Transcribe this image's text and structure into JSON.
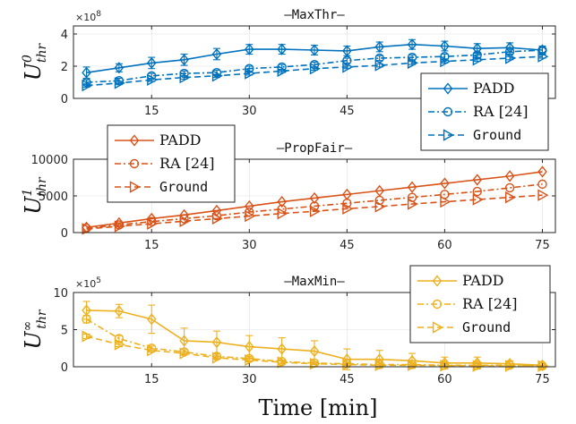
{
  "colors": {
    "MaxThr": "#0072BD",
    "PropFair": "#D95319",
    "MaxMin": "#EDB120"
  },
  "xlabel": "Time [min]",
  "chart_data": [
    {
      "id": "MaxThr",
      "type": "line",
      "title": "—MaxThr—",
      "ylabel": "U",
      "ylabel_sup": "0",
      "ylabel_sub": "thr",
      "exponent_label": "×10",
      "exponent_power": "8",
      "scale": 100000000,
      "xlim": [
        3,
        77
      ],
      "ylim": [
        0,
        4.5
      ],
      "xticks": [
        15,
        30,
        45,
        60,
        75
      ],
      "xticklabels": [
        "15",
        "30",
        "45",
        "60",
        "75"
      ],
      "show_xticklabels": [
        true,
        true,
        true,
        false,
        false
      ],
      "yticks": [
        0,
        2,
        4
      ],
      "yticklabels": [
        "0",
        "2",
        "4"
      ],
      "legend_position": "bottom-right",
      "x": [
        5,
        10,
        15,
        20,
        25,
        30,
        35,
        40,
        45,
        50,
        55,
        60,
        65,
        70,
        75
      ],
      "series": [
        {
          "name": "PADD",
          "linestyle": "solid",
          "marker": "diamond",
          "values": [
            1.6,
            1.9,
            2.2,
            2.4,
            2.75,
            3.05,
            3.05,
            3.0,
            2.95,
            3.2,
            3.35,
            3.25,
            3.1,
            3.15,
            3.0
          ],
          "errors": [
            0.35,
            0.25,
            0.35,
            0.35,
            0.35,
            0.3,
            0.3,
            0.3,
            0.3,
            0.3,
            0.3,
            0.3,
            0.3,
            0.3,
            0.25
          ]
        },
        {
          "name": "RA [24]",
          "linestyle": "dashdot",
          "marker": "circle",
          "values": [
            1.0,
            1.1,
            1.4,
            1.55,
            1.6,
            1.85,
            1.95,
            2.1,
            2.35,
            2.5,
            2.55,
            2.6,
            2.7,
            2.9,
            3.0
          ],
          "errors": [
            0.15,
            0.15,
            0.15,
            0.15,
            0.15,
            0.15,
            0.15,
            0.15,
            0.15,
            0.15,
            0.15,
            0.15,
            0.15,
            0.15,
            0.15
          ]
        },
        {
          "name": "Ground",
          "linestyle": "dashed",
          "marker": "triangle-right",
          "values": [
            0.8,
            0.95,
            1.15,
            1.3,
            1.4,
            1.55,
            1.7,
            1.85,
            1.95,
            2.05,
            2.2,
            2.3,
            2.4,
            2.5,
            2.6
          ],
          "errors": [
            0.1,
            0.1,
            0.1,
            0.1,
            0.1,
            0.1,
            0.1,
            0.1,
            0.1,
            0.1,
            0.1,
            0.1,
            0.1,
            0.1,
            0.1
          ]
        }
      ]
    },
    {
      "id": "PropFair",
      "type": "line",
      "title": "—PropFair—",
      "ylabel": "U",
      "ylabel_sup": "1",
      "ylabel_sub": "thr",
      "exponent_label": "",
      "exponent_power": "",
      "scale": 1,
      "xlim": [
        3,
        77
      ],
      "ylim": [
        0,
        10000
      ],
      "xticks": [
        15,
        30,
        45,
        60,
        75
      ],
      "xticklabels": [
        "15",
        "30",
        "45",
        "60",
        "75"
      ],
      "show_xticklabels": [
        true,
        true,
        true,
        true,
        true
      ],
      "yticks": [
        0,
        5000,
        10000
      ],
      "yticklabels": [
        "0",
        "5000",
        "10000"
      ],
      "legend_position": "top-left",
      "x": [
        5,
        10,
        15,
        20,
        25,
        30,
        35,
        40,
        45,
        50,
        55,
        60,
        65,
        70,
        75
      ],
      "series": [
        {
          "name": "PADD",
          "linestyle": "solid",
          "marker": "diamond",
          "values": [
            700,
            1300,
            1900,
            2400,
            3000,
            3600,
            4200,
            4700,
            5200,
            5700,
            6200,
            6700,
            7200,
            7700,
            8300
          ],
          "errors": [
            0,
            0,
            0,
            0,
            0,
            0,
            0,
            0,
            0,
            0,
            0,
            0,
            0,
            0,
            0
          ]
        },
        {
          "name": "RA [24]",
          "linestyle": "dashdot",
          "marker": "circle",
          "values": [
            600,
            1050,
            1500,
            1900,
            2300,
            2800,
            3200,
            3600,
            4000,
            4400,
            4800,
            5200,
            5600,
            6100,
            6600
          ],
          "errors": [
            0,
            0,
            0,
            0,
            0,
            0,
            0,
            0,
            0,
            0,
            0,
            0,
            0,
            0,
            0
          ]
        },
        {
          "name": "Ground",
          "linestyle": "dashed",
          "marker": "triangle-right",
          "values": [
            500,
            850,
            1200,
            1550,
            1900,
            2250,
            2600,
            2900,
            3250,
            3550,
            3900,
            4200,
            4500,
            4800,
            5100
          ],
          "errors": [
            0,
            0,
            0,
            0,
            0,
            0,
            0,
            0,
            0,
            0,
            0,
            0,
            0,
            0,
            0
          ]
        }
      ]
    },
    {
      "id": "MaxMin",
      "type": "line",
      "title": "—MaxMin—",
      "ylabel": "U",
      "ylabel_sup": "∞",
      "ylabel_sub": "thr",
      "exponent_label": "×10",
      "exponent_power": "5",
      "scale": 100000,
      "xlim": [
        3,
        77
      ],
      "ylim": [
        0,
        10
      ],
      "xticks": [
        15,
        30,
        45,
        60,
        75
      ],
      "xticklabels": [
        "15",
        "30",
        "45",
        "60",
        "75"
      ],
      "show_xticklabels": [
        true,
        true,
        true,
        true,
        true
      ],
      "yticks": [
        0,
        5,
        10
      ],
      "yticklabels": [
        "0",
        "5",
        "10"
      ],
      "legend_position": "top-right",
      "x": [
        5,
        10,
        15,
        20,
        25,
        30,
        35,
        40,
        45,
        50,
        55,
        60,
        65,
        70,
        75
      ],
      "series": [
        {
          "name": "PADD",
          "linestyle": "solid",
          "marker": "diamond",
          "values": [
            7.6,
            7.5,
            6.4,
            3.5,
            3.3,
            2.7,
            2.4,
            2.1,
            1.0,
            1.0,
            0.8,
            0.5,
            0.5,
            0.4,
            0.2
          ],
          "errors": [
            1.2,
            0.9,
            1.9,
            1.7,
            1.5,
            1.5,
            1.5,
            1.4,
            1.4,
            1.2,
            1.0,
            0.8,
            0.8,
            0.4,
            0.3
          ]
        },
        {
          "name": "RA [24]",
          "linestyle": "dashdot",
          "marker": "circle",
          "values": [
            6.4,
            3.8,
            2.5,
            2.0,
            1.4,
            1.1,
            0.7,
            0.5,
            0.4,
            0.3,
            0.3,
            0.2,
            0.2,
            0.2,
            0.1
          ],
          "errors": [
            0.5,
            0.4,
            0.3,
            0.3,
            0.3,
            0.3,
            0.2,
            0.2,
            0.2,
            0.2,
            0.2,
            0.2,
            0.2,
            0.2,
            0.1
          ]
        },
        {
          "name": "Ground",
          "linestyle": "dashed",
          "marker": "triangle-right",
          "values": [
            4.1,
            3.0,
            2.2,
            1.8,
            1.2,
            0.9,
            0.6,
            0.4,
            0.3,
            0.2,
            0.2,
            0.15,
            0.1,
            0.1,
            0.1
          ],
          "errors": [
            0.3,
            0.3,
            0.2,
            0.2,
            0.2,
            0.2,
            0.2,
            0.1,
            0.1,
            0.1,
            0.1,
            0.1,
            0.1,
            0.1,
            0.1
          ]
        }
      ]
    }
  ]
}
